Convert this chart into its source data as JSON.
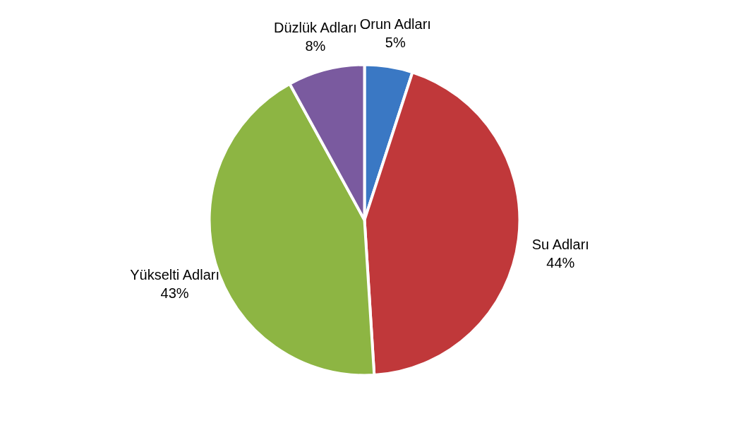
{
  "chart_data": {
    "type": "pie",
    "categories": [
      "Orun Adları",
      "Su Adları",
      "Yükselti Adları",
      "Düzlük Adları"
    ],
    "values": [
      5,
      44,
      43,
      8
    ],
    "colors": [
      "#3a78c4",
      "#c0383a",
      "#8db543",
      "#7a5a9f"
    ],
    "value_labels": [
      "5%",
      "44%",
      "43%",
      "8%"
    ],
    "legend": false
  }
}
